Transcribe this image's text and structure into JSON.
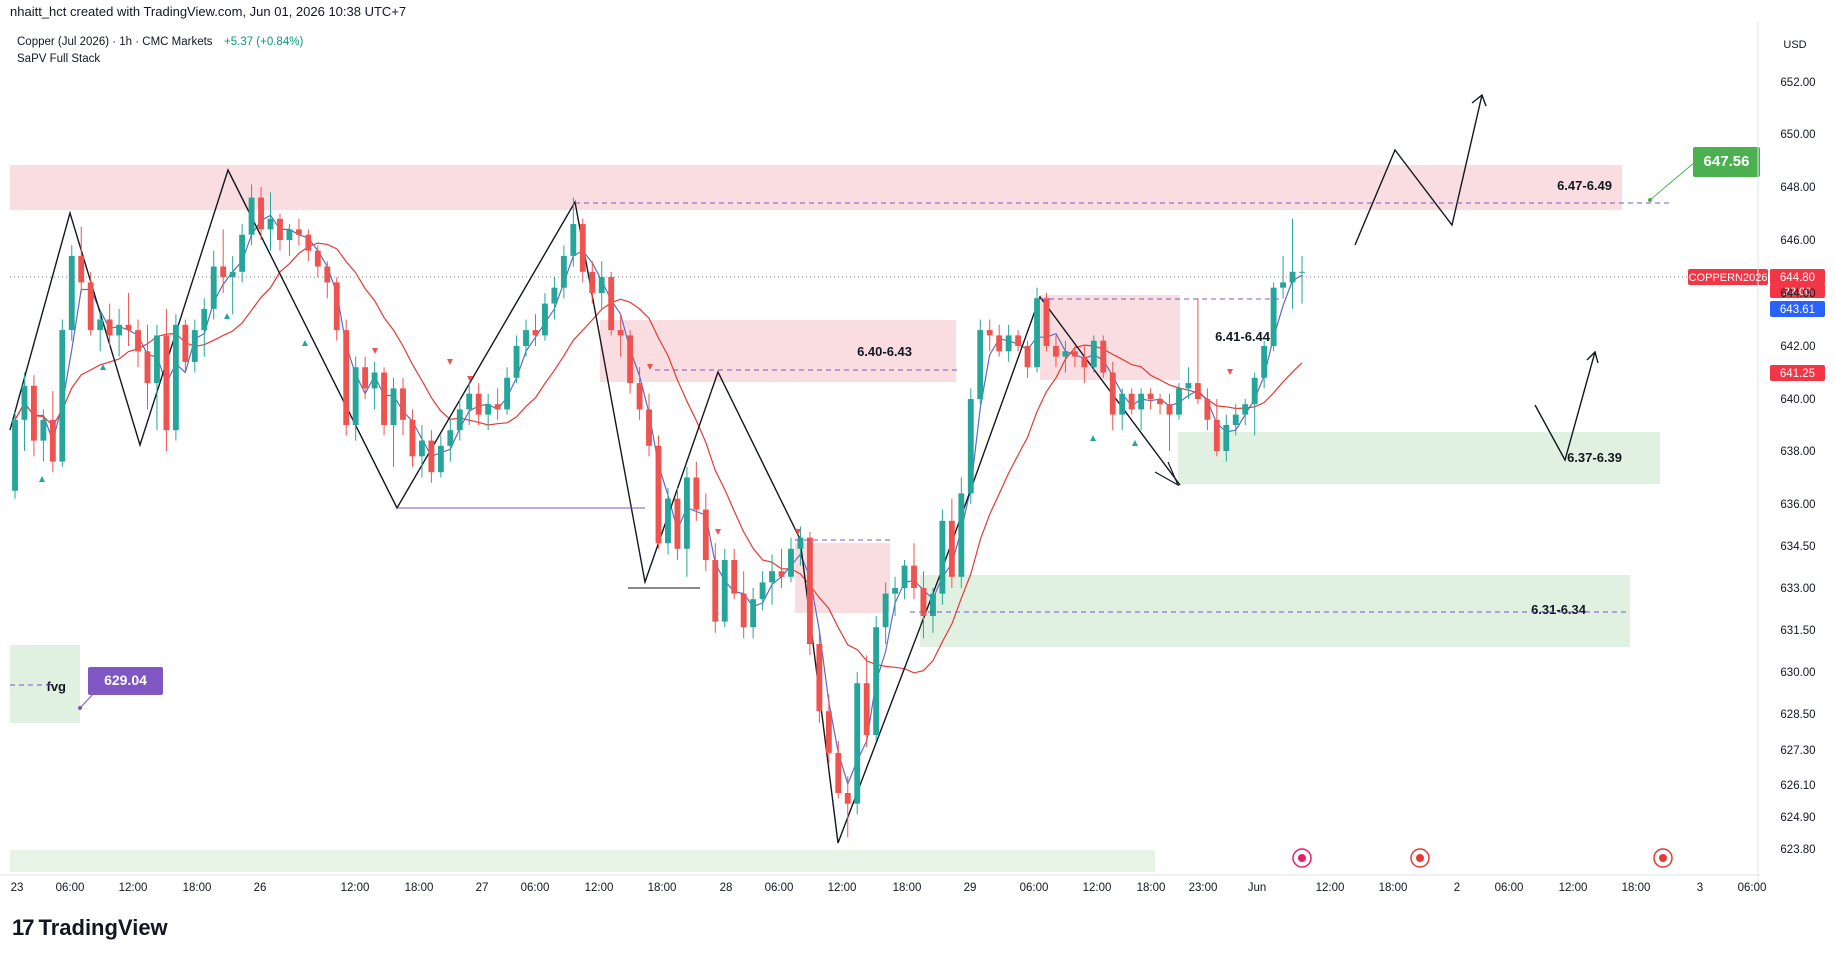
{
  "header": {
    "created_by": "nhaitt_hct created with TradingView.com, Jun 01, 2026 10:38 UTC+7"
  },
  "legend": {
    "symbol": "Copper (Jul 2026) · 1h · CMC Markets",
    "change": "+5.37 (+0.84%)",
    "indicator": "SaPV Full Stack"
  },
  "currency": "USD",
  "brand": "TradingView",
  "colors": {
    "bull": "#26a69a",
    "bear": "#ef5350",
    "supply_zone": "#f8d7da",
    "demand_zone": "#dcefdc",
    "ma_fast": "#5c6bc0",
    "ma_slow": "#e53935",
    "label_green": "#4caf50",
    "label_purple": "#7e57c2",
    "label_red": "#f23645",
    "label_blue": "#2962ff"
  },
  "chart_data": {
    "type": "candlestick",
    "interval": "1h",
    "y_axis": {
      "ticks": [
        "652.00",
        "650.00",
        "648.00",
        "646.00",
        "644.00",
        "642.00",
        "640.00",
        "638.00",
        "636.00",
        "634.50",
        "633.00",
        "631.50",
        "630.00",
        "628.50",
        "627.30",
        "626.10",
        "624.90",
        "623.80"
      ]
    },
    "x_axis": {
      "ticks": [
        "23",
        "06:00",
        "12:00",
        "18:00",
        "26",
        "12:00",
        "18:00",
        "27",
        "06:00",
        "12:00",
        "18:00",
        "28",
        "06:00",
        "12:00",
        "18:00",
        "29",
        "06:00",
        "12:00",
        "18:00",
        "23:00",
        "Jun",
        "12:00",
        "18:00",
        "2",
        "06:00",
        "12:00",
        "18:00",
        "3",
        "06:00"
      ]
    },
    "price_labels": [
      {
        "text": "647.56",
        "color": "#4caf50"
      },
      {
        "text": "COPPERN2026",
        "color": "#f23645"
      },
      {
        "text": "644.80",
        "color": "#f23645"
      },
      {
        "text": "22:00",
        "color": "#f23645"
      },
      {
        "text": "643.61",
        "color": "#2962ff"
      },
      {
        "text": "641.25",
        "color": "#f23645"
      },
      {
        "text": "629.04",
        "color": "#7e57c2"
      }
    ],
    "zones": [
      {
        "label": "6.47-6.49",
        "kind": "supply"
      },
      {
        "label": "6.40-6.43",
        "kind": "supply"
      },
      {
        "label": "6.41-6.44",
        "kind": "supply"
      },
      {
        "label": "6.37-6.39",
        "kind": "demand"
      },
      {
        "label": "6.31-6.34",
        "kind": "demand"
      },
      {
        "label": "fvg",
        "kind": "demand"
      }
    ],
    "candles": [
      [
        636.5,
        639.5,
        636.2,
        639.2
      ],
      [
        639.2,
        641.0,
        638.0,
        640.5
      ],
      [
        640.5,
        640.9,
        637.8,
        638.4
      ],
      [
        638.4,
        639.6,
        637.6,
        639.2
      ],
      [
        639.2,
        640.3,
        637.2,
        637.6
      ],
      [
        637.6,
        643.0,
        637.4,
        642.6
      ],
      [
        642.6,
        645.8,
        642.2,
        645.4
      ],
      [
        645.4,
        646.5,
        644.0,
        644.4
      ],
      [
        644.4,
        644.8,
        642.4,
        642.6
      ],
      [
        642.6,
        643.3,
        641.8,
        643.0
      ],
      [
        643.0,
        643.6,
        642.0,
        642.4
      ],
      [
        642.4,
        643.4,
        641.6,
        642.8
      ],
      [
        642.8,
        644.0,
        642.0,
        642.6
      ],
      [
        642.6,
        643.0,
        641.2,
        641.8
      ],
      [
        641.8,
        642.8,
        639.6,
        640.6
      ],
      [
        640.6,
        642.8,
        638.8,
        642.4
      ],
      [
        642.4,
        643.4,
        638.0,
        638.8
      ],
      [
        638.8,
        643.2,
        638.4,
        642.8
      ],
      [
        642.8,
        643.0,
        641.0,
        641.4
      ],
      [
        641.4,
        643.0,
        641.0,
        642.6
      ],
      [
        642.6,
        643.8,
        641.6,
        643.4
      ],
      [
        643.4,
        645.6,
        643.0,
        645.0
      ],
      [
        645.0,
        646.4,
        644.0,
        644.6
      ],
      [
        644.6,
        645.4,
        643.2,
        644.8
      ],
      [
        644.8,
        646.6,
        644.4,
        646.2
      ],
      [
        646.2,
        648.1,
        645.8,
        647.6
      ],
      [
        647.6,
        648.0,
        646.0,
        646.4
      ],
      [
        646.4,
        647.8,
        645.6,
        646.8
      ],
      [
        646.8,
        647.0,
        645.6,
        646.0
      ],
      [
        646.0,
        646.6,
        645.4,
        646.4
      ],
      [
        646.4,
        646.8,
        645.8,
        646.2
      ],
      [
        646.2,
        646.4,
        645.2,
        645.6
      ],
      [
        645.6,
        645.8,
        644.6,
        645.0
      ],
      [
        645.0,
        645.2,
        643.8,
        644.4
      ],
      [
        644.4,
        644.6,
        642.2,
        642.6
      ],
      [
        642.6,
        643.0,
        638.6,
        639.0
      ],
      [
        639.0,
        641.6,
        638.4,
        641.2
      ],
      [
        641.2,
        641.6,
        640.0,
        640.4
      ],
      [
        640.4,
        641.4,
        639.6,
        641.0
      ],
      [
        641.0,
        641.2,
        638.6,
        639.0
      ],
      [
        639.0,
        640.8,
        637.4,
        640.4
      ],
      [
        640.4,
        640.8,
        638.6,
        639.2
      ],
      [
        639.2,
        639.6,
        637.4,
        637.8
      ],
      [
        637.8,
        639.0,
        637.0,
        638.4
      ],
      [
        638.4,
        638.8,
        636.8,
        637.2
      ],
      [
        637.2,
        638.6,
        637.0,
        638.2
      ],
      [
        638.2,
        639.2,
        637.6,
        638.8
      ],
      [
        638.8,
        640.0,
        638.4,
        639.6
      ],
      [
        639.6,
        640.6,
        639.0,
        640.2
      ],
      [
        640.2,
        640.6,
        639.0,
        639.4
      ],
      [
        639.4,
        640.2,
        638.8,
        639.8
      ],
      [
        639.8,
        640.4,
        639.2,
        639.6
      ],
      [
        639.6,
        641.2,
        639.4,
        640.8
      ],
      [
        640.8,
        642.4,
        640.6,
        642.0
      ],
      [
        642.0,
        643.0,
        641.6,
        642.6
      ],
      [
        642.6,
        643.2,
        642.0,
        642.4
      ],
      [
        642.4,
        644.0,
        642.2,
        643.6
      ],
      [
        643.6,
        644.6,
        643.0,
        644.2
      ],
      [
        644.2,
        645.8,
        643.8,
        645.4
      ],
      [
        645.4,
        647.6,
        645.0,
        646.6
      ],
      [
        646.6,
        646.8,
        644.4,
        644.8
      ],
      [
        644.8,
        645.2,
        643.6,
        644.0
      ],
      [
        644.0,
        645.2,
        643.4,
        644.6
      ],
      [
        644.6,
        644.8,
        642.4,
        642.6
      ],
      [
        642.6,
        643.2,
        641.6,
        642.4
      ],
      [
        642.4,
        642.6,
        640.2,
        640.6
      ],
      [
        640.6,
        641.2,
        639.2,
        639.6
      ],
      [
        639.6,
        640.2,
        637.8,
        638.2
      ],
      [
        638.2,
        638.6,
        634.4,
        634.6
      ],
      [
        634.6,
        636.6,
        634.2,
        636.2
      ],
      [
        636.2,
        636.6,
        634.0,
        634.4
      ],
      [
        634.4,
        637.4,
        633.4,
        637.0
      ],
      [
        637.0,
        637.6,
        635.4,
        635.8
      ],
      [
        635.8,
        636.4,
        633.6,
        634.0
      ],
      [
        634.0,
        634.6,
        631.4,
        631.8
      ],
      [
        631.8,
        634.4,
        631.6,
        634.0
      ],
      [
        634.0,
        634.4,
        632.6,
        632.8
      ],
      [
        632.8,
        633.6,
        631.2,
        631.6
      ],
      [
        631.6,
        633.0,
        631.2,
        632.6
      ],
      [
        632.6,
        633.6,
        632.2,
        633.2
      ],
      [
        633.2,
        634.2,
        632.4,
        633.6
      ],
      [
        633.6,
        634.4,
        633.0,
        633.4
      ],
      [
        633.4,
        634.8,
        633.2,
        634.4
      ],
      [
        634.4,
        635.2,
        633.8,
        634.8
      ],
      [
        634.8,
        635.0,
        630.6,
        631.0
      ],
      [
        631.0,
        631.4,
        628.2,
        628.6
      ],
      [
        628.6,
        629.2,
        626.8,
        627.2
      ],
      [
        627.2,
        627.6,
        625.6,
        625.8
      ],
      [
        625.8,
        626.4,
        624.2,
        625.4
      ],
      [
        625.4,
        630.0,
        625.0,
        629.6
      ],
      [
        629.6,
        630.6,
        627.4,
        627.8
      ],
      [
        627.8,
        632.0,
        627.6,
        631.6
      ],
      [
        631.6,
        633.2,
        631.0,
        632.8
      ],
      [
        632.8,
        633.4,
        632.0,
        633.0
      ],
      [
        633.0,
        634.0,
        632.6,
        633.8
      ],
      [
        633.8,
        634.6,
        632.6,
        633.0
      ],
      [
        633.0,
        633.6,
        631.2,
        632.0
      ],
      [
        632.0,
        633.0,
        631.4,
        632.8
      ],
      [
        632.8,
        635.8,
        632.4,
        635.4
      ],
      [
        635.4,
        636.2,
        633.0,
        633.4
      ],
      [
        633.4,
        637.0,
        633.0,
        636.4
      ],
      [
        636.4,
        640.4,
        636.0,
        640.0
      ],
      [
        640.0,
        643.0,
        639.8,
        642.6
      ],
      [
        642.6,
        643.0,
        641.8,
        642.4
      ],
      [
        642.4,
        642.8,
        641.6,
        641.8
      ],
      [
        641.8,
        642.8,
        641.4,
        642.4
      ],
      [
        642.4,
        642.6,
        641.8,
        642.0
      ],
      [
        642.0,
        642.2,
        640.8,
        641.2
      ],
      [
        641.2,
        644.2,
        641.0,
        643.8
      ],
      [
        643.8,
        644.0,
        641.8,
        642.0
      ],
      [
        642.0,
        642.4,
        641.2,
        641.6
      ],
      [
        641.6,
        642.2,
        641.0,
        641.8
      ],
      [
        641.8,
        642.0,
        641.2,
        641.6
      ],
      [
        641.6,
        642.0,
        640.6,
        641.2
      ],
      [
        641.2,
        642.4,
        641.0,
        642.2
      ],
      [
        642.2,
        642.4,
        640.8,
        641.0
      ],
      [
        641.0,
        641.4,
        638.8,
        639.4
      ],
      [
        639.4,
        640.4,
        638.8,
        640.2
      ],
      [
        640.2,
        640.4,
        639.4,
        639.6
      ],
      [
        639.6,
        640.4,
        638.8,
        640.2
      ],
      [
        640.2,
        640.4,
        639.6,
        640.0
      ],
      [
        640.0,
        640.2,
        639.4,
        639.8
      ],
      [
        639.8,
        640.2,
        638.0,
        639.4
      ],
      [
        639.4,
        640.6,
        639.2,
        640.4
      ],
      [
        640.4,
        641.2,
        640.0,
        640.6
      ],
      [
        640.6,
        643.8,
        639.8,
        640.0
      ],
      [
        640.0,
        640.4,
        638.8,
        639.2
      ],
      [
        639.2,
        640.0,
        637.8,
        638.0
      ],
      [
        638.0,
        639.4,
        637.6,
        639.0
      ],
      [
        639.0,
        639.8,
        638.6,
        639.4
      ],
      [
        639.4,
        640.0,
        639.0,
        639.8
      ],
      [
        639.8,
        641.0,
        638.6,
        640.8
      ],
      [
        640.8,
        642.2,
        640.4,
        642.0
      ],
      [
        642.0,
        644.4,
        641.8,
        644.2
      ],
      [
        644.2,
        645.4,
        643.8,
        644.4
      ],
      [
        644.4,
        646.8,
        643.4,
        644.8
      ],
      [
        644.8,
        645.4,
        643.6,
        644.8
      ]
    ],
    "forecast_paths": [
      {
        "name": "bullish projection",
        "points": [
          [
            646.0,
            1110
          ],
          [
            649.0,
            1140
          ],
          [
            647.2,
            1170
          ],
          [
            651.4,
            1195
          ]
        ]
      },
      {
        "name": "bearish projection",
        "points": [
          [
            640.0,
            1105
          ],
          [
            638.0,
            1130
          ],
          [
            642.0,
            1155
          ]
        ]
      }
    ]
  }
}
